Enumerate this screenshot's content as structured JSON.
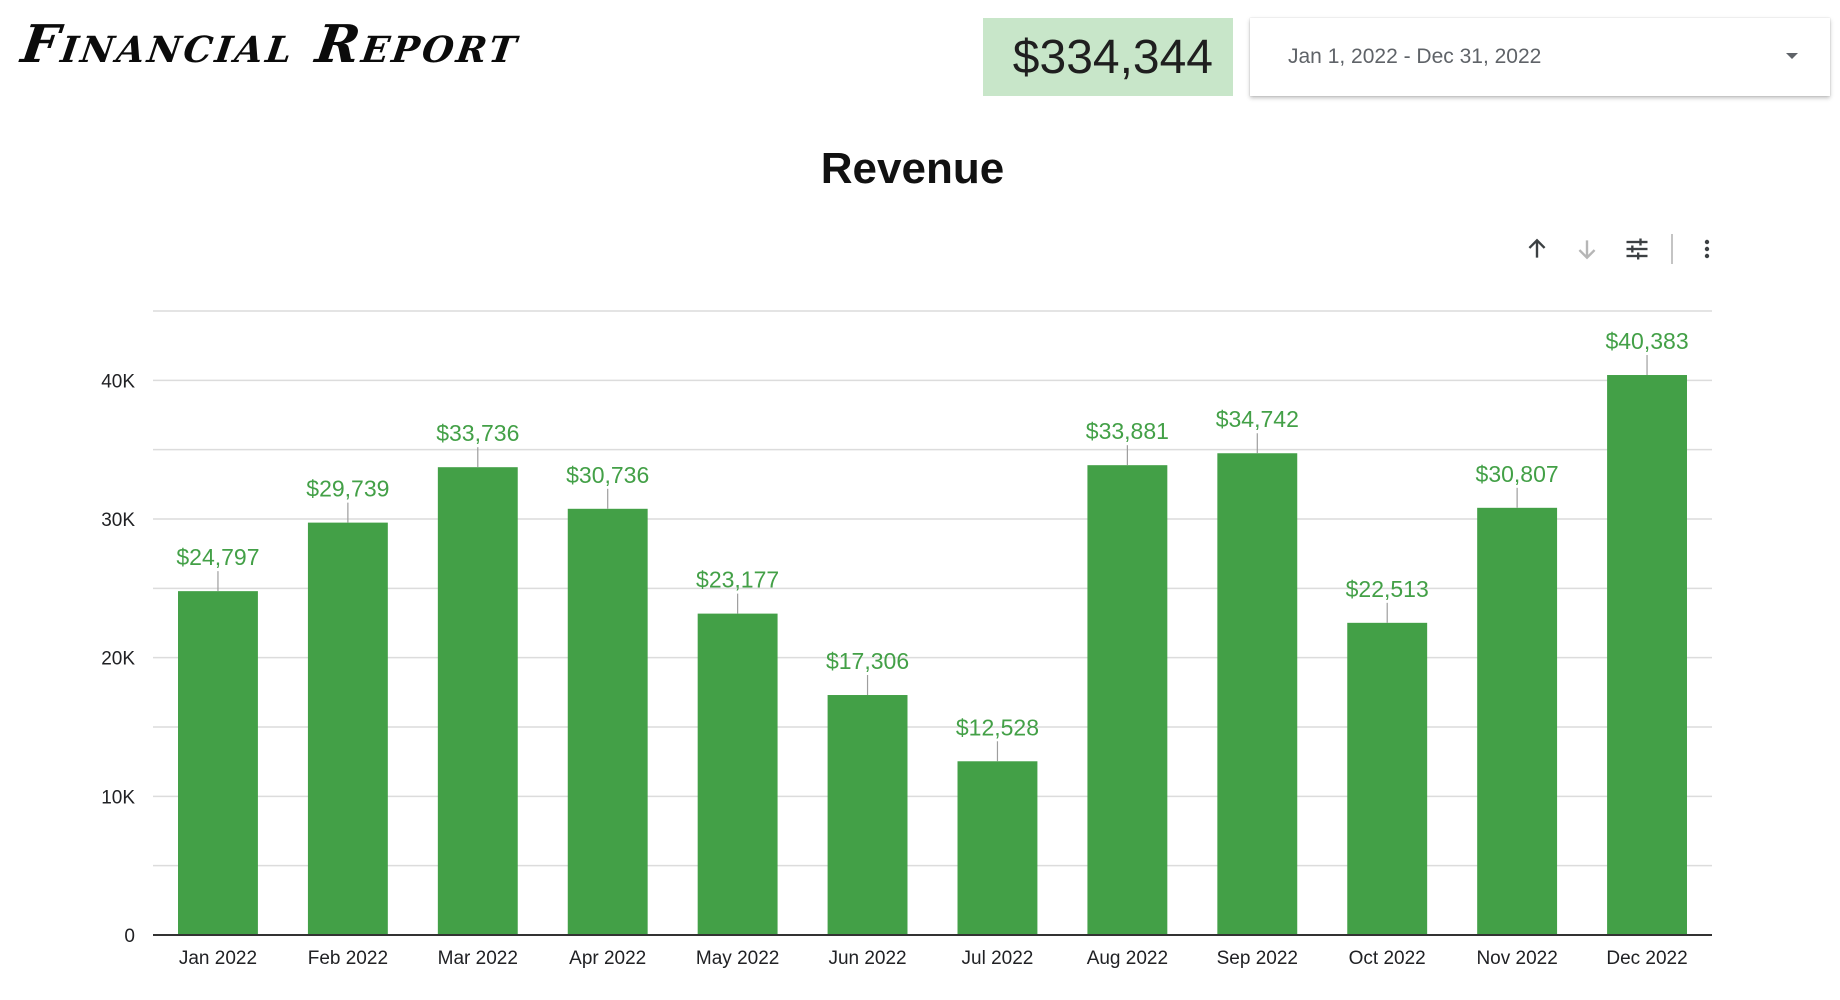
{
  "header": {
    "title": "Financial Report",
    "total": "$334,344",
    "date_range": "Jan 1, 2022 - Dec 31, 2022"
  },
  "toolbar": {
    "icons": [
      "sort-ascending-icon",
      "sort-descending-icon",
      "tune-icon",
      "more-vert-icon"
    ]
  },
  "colors": {
    "bar": "#43a047",
    "label": "#43a047",
    "total_bg": "#c8e6c9",
    "grid": "#dcdcdc"
  },
  "chart_data": {
    "type": "bar",
    "title": "Revenue",
    "xlabel": "",
    "ylabel": "",
    "categories": [
      "Jan 2022",
      "Feb 2022",
      "Mar 2022",
      "Apr 2022",
      "May 2022",
      "Jun 2022",
      "Jul 2022",
      "Aug 2022",
      "Sep 2022",
      "Oct 2022",
      "Nov 2022",
      "Dec 2022"
    ],
    "values": [
      24797,
      29739,
      33736,
      30736,
      23177,
      17306,
      12528,
      33881,
      34742,
      22513,
      30807,
      40383
    ],
    "value_labels": [
      "$24,797",
      "$29,739",
      "$33,736",
      "$30,736",
      "$23,177",
      "$17,306",
      "$12,528",
      "$33,881",
      "$34,742",
      "$22,513",
      "$30,807",
      "$40,383"
    ],
    "ylim": [
      0,
      45000
    ],
    "yticks": [
      0,
      10000,
      20000,
      30000,
      40000
    ],
    "ytick_labels": [
      "0",
      "10K",
      "20K",
      "30K",
      "40K"
    ],
    "grid": true,
    "legend": "none"
  }
}
